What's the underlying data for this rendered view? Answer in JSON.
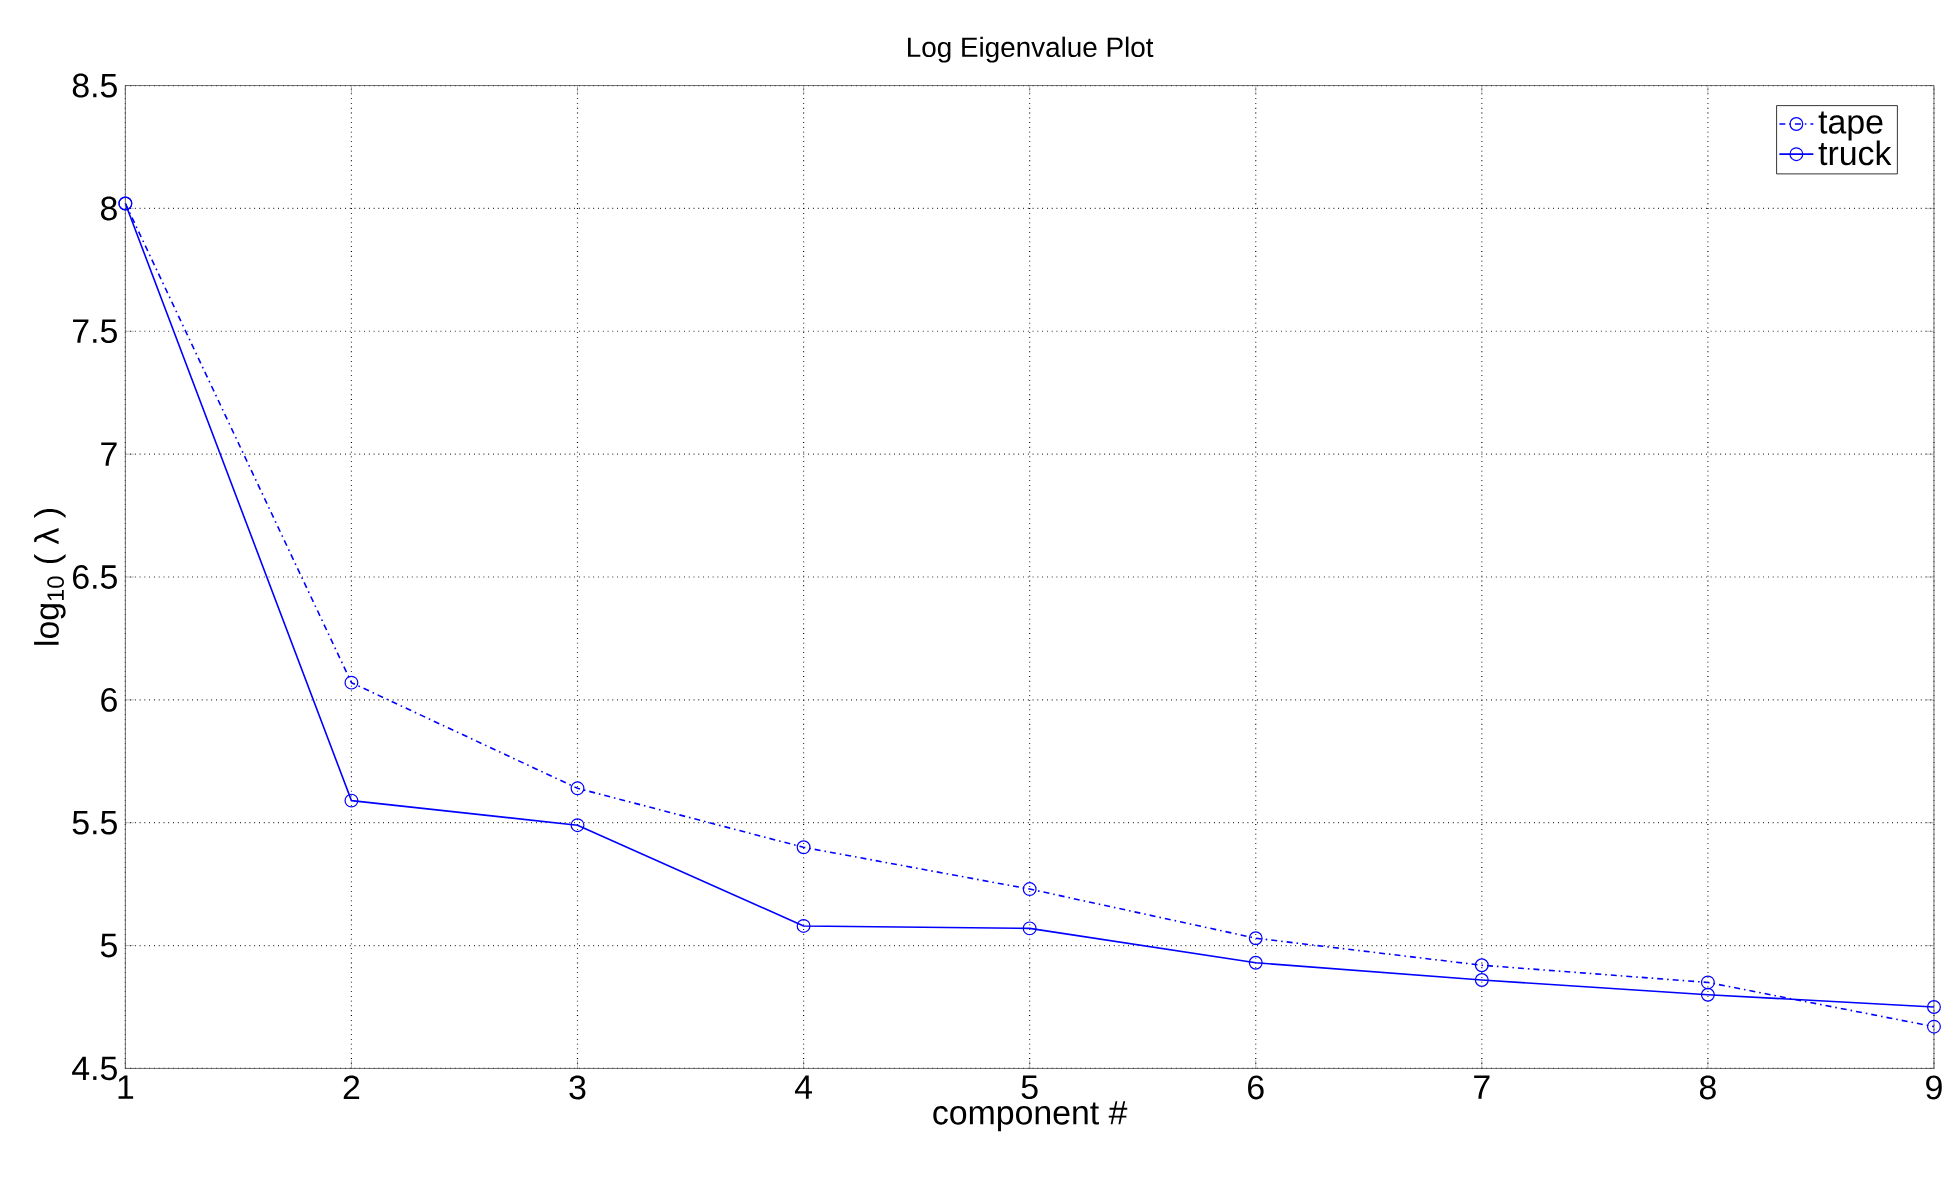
{
  "chart_data": {
    "type": "line",
    "title": "Log Eigenvalue Plot",
    "xlabel": "component #",
    "ylabel": "log$_{10}$ ( λ )",
    "x": [
      1,
      2,
      3,
      4,
      5,
      6,
      7,
      8,
      9
    ],
    "series": [
      {
        "name": "tape",
        "color": "#0000ff",
        "line_style": "dashdot",
        "values": [
          8.02,
          6.07,
          5.64,
          5.4,
          5.23,
          5.03,
          4.92,
          4.85,
          4.67
        ]
      },
      {
        "name": "truck",
        "color": "#0000ff",
        "line_style": "solid",
        "values": [
          8.02,
          5.59,
          5.49,
          5.08,
          5.07,
          4.93,
          4.86,
          4.8,
          4.75
        ]
      }
    ],
    "xlim": [
      1,
      9
    ],
    "xticks": [
      1,
      2,
      3,
      4,
      5,
      6,
      7,
      8,
      9
    ],
    "ylim": [
      4.5,
      8.5
    ],
    "yticks": [
      4.5,
      5,
      5.5,
      6,
      6.5,
      7,
      7.5,
      8,
      8.5
    ],
    "grid": true,
    "legend": "top right",
    "marker": "circle"
  }
}
